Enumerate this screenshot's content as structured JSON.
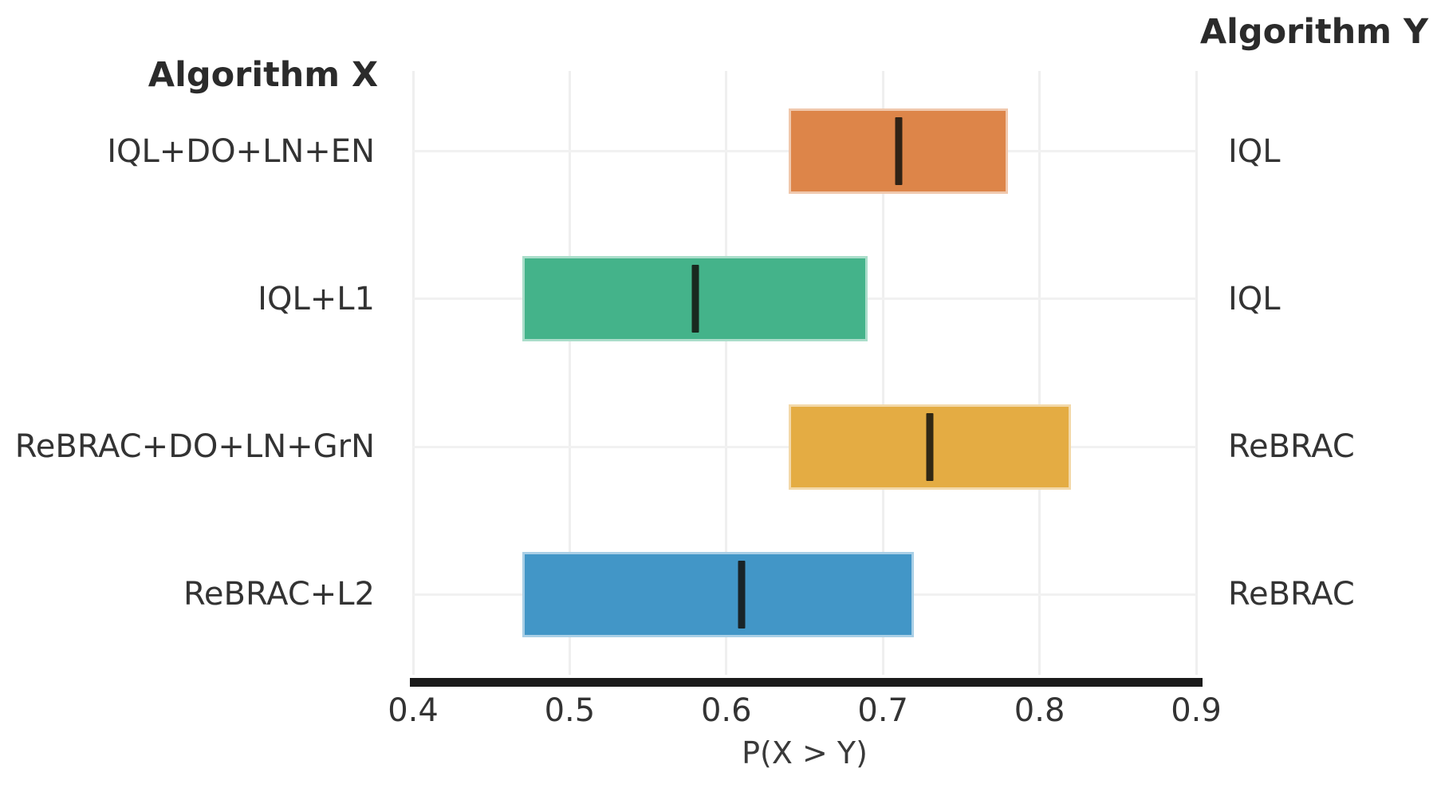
{
  "headers": {
    "algorithm_x": "Algorithm X",
    "algorithm_y": "Algorithm Y"
  },
  "colors": {
    "axis_line": "#1b1b1b",
    "grid_line": "#f0f0f0",
    "text": "#333333",
    "median_line": "#14120c"
  },
  "chart_data": {
    "type": "bar",
    "subtype": "horizontal-interval-estimates",
    "title": "",
    "xlabel": "P(X > Y)",
    "xlim": [
      0.4,
      0.9
    ],
    "x_ticks": [
      0.4,
      0.5,
      0.6,
      0.7,
      0.8,
      0.9
    ],
    "x_tick_labels": [
      "0.4",
      "0.5",
      "0.6",
      "0.7",
      "0.8",
      "0.9"
    ],
    "grid": true,
    "left_column_header": "Algorithm X",
    "right_column_header": "Algorithm Y",
    "rows": [
      {
        "algorithm_x": "IQL+DO+LN+EN",
        "algorithm_y": "IQL",
        "ci_low": 0.64,
        "ci_high": 0.78,
        "point": 0.71,
        "color": "#DD8549"
      },
      {
        "algorithm_x": "IQL+L1",
        "algorithm_y": "IQL",
        "ci_low": 0.47,
        "ci_high": 0.69,
        "point": 0.58,
        "color": "#44B38A"
      },
      {
        "algorithm_x": "ReBRAC+DO+LN+GrN",
        "algorithm_y": "ReBRAC",
        "ci_low": 0.64,
        "ci_high": 0.82,
        "point": 0.73,
        "color": "#E4AC43"
      },
      {
        "algorithm_x": "ReBRAC+L2",
        "algorithm_y": "ReBRAC",
        "ci_low": 0.47,
        "ci_high": 0.72,
        "point": 0.61,
        "color": "#4296C7"
      }
    ]
  }
}
